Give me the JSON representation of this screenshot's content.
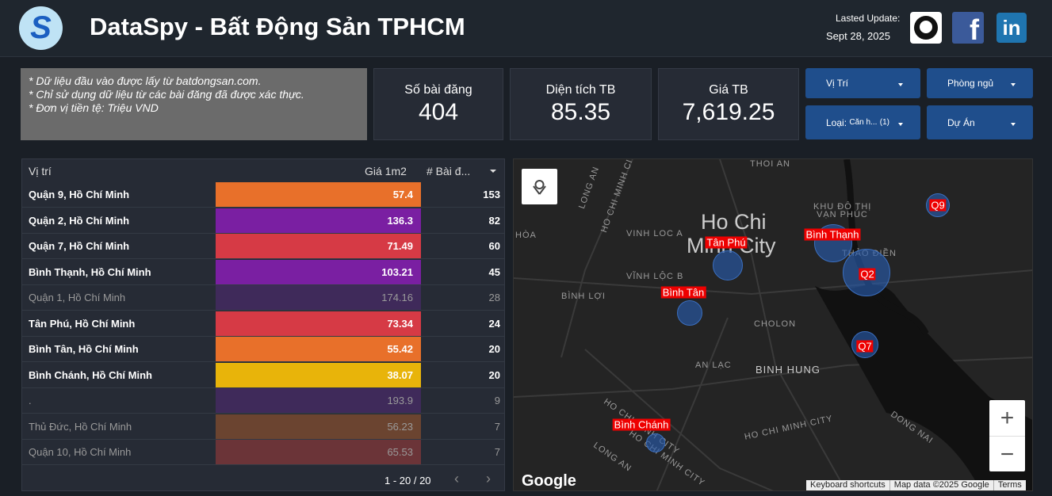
{
  "header": {
    "logo": "S",
    "title": "DataSpy - Bất Động Sản TPHCM",
    "update_label": "Lasted Update:",
    "update_date": "Sept 28, 2025",
    "social": [
      "f",
      "in"
    ]
  },
  "notes": [
    "* Dữ liệu đầu vào được lấy từ batdongsan.com.",
    "* Chỉ sử dụng dữ liệu từ các bài đăng đã được xác thực.",
    "* Đơn vị tiền tệ: Triệu VND"
  ],
  "kpis": [
    {
      "label": "Số bài đăng",
      "value": 404
    },
    {
      "label": "Diện tích TB",
      "value": 85.35
    },
    {
      "label": "Giá TB",
      "value": "7,619.25"
    }
  ],
  "filters": [
    {
      "label": "Vị Trí"
    },
    {
      "label": "Phòng ngủ"
    },
    {
      "label": "Loại:",
      "selected": "Căn h...",
      "count": "(1)"
    },
    {
      "label": "Dự Án"
    }
  ],
  "table": {
    "columns": [
      "Vị trí",
      "Giá 1m2",
      "# Bài đ..."
    ],
    "rows": [
      {
        "name": "Quận 9, Hồ Chí Minh",
        "price": 57.4,
        "count": 153,
        "color": "#e8702a",
        "highlighted": true
      },
      {
        "name": "Quận 2, Hồ Chí Minh",
        "price": 136.3,
        "count": 82,
        "color": "#7a1fa2",
        "highlighted": true
      },
      {
        "name": "Quận 7, Hồ Chí Minh",
        "price": 71.49,
        "count": 60,
        "color": "#d63a45",
        "highlighted": true
      },
      {
        "name": "Bình Thạnh, Hồ Chí Minh",
        "price": 103.21,
        "count": 45,
        "color": "#7a1fa2",
        "highlighted": true
      },
      {
        "name": "Quận 1, Hồ Chí Minh",
        "price": 174.16,
        "count": 28,
        "color": "#3f2a5a",
        "highlighted": false
      },
      {
        "name": "Tân Phú, Hồ Chí Minh",
        "price": 73.34,
        "count": 24,
        "color": "#d63a45",
        "highlighted": true
      },
      {
        "name": "Bình Tân, Hồ Chí Minh",
        "price": 55.42,
        "count": 20,
        "color": "#e8702a",
        "highlighted": true
      },
      {
        "name": "Bình Chánh, Hồ Chí Minh",
        "price": 38.07,
        "count": 20,
        "color": "#e8b40a",
        "highlighted": true
      },
      {
        "name": ".",
        "price": 193.9,
        "count": 9,
        "color": "#3f2a5a",
        "highlighted": false
      },
      {
        "name": "Thủ Đức, Hồ Chí Minh",
        "price": 56.23,
        "count": 7,
        "color": "#6b4430",
        "highlighted": false
      },
      {
        "name": "Quận 10, Hồ Chí Minh",
        "price": 65.53,
        "count": 7,
        "color": "#6b3438",
        "highlighted": false
      }
    ],
    "pagination": "1 - 20 / 20"
  },
  "map": {
    "places": [
      "THOI AN",
      "LONG AN",
      "HO CHI MINH CITY",
      "VINH LOC A",
      "HÒA",
      "VĨNH LỘC B",
      "BÌNH LỢI",
      "Ho Chi",
      "Minh City",
      "KHU ĐÔ THỊ",
      "VẠN PHÚC",
      "THẢO ĐIỀN",
      "CHOLON",
      "AN LẠC",
      "BINH HUNG",
      "HO CHI MINH CITY",
      "LONG AN",
      "HO CHI MINH CITY",
      "DONG NAI",
      "HO CHI MINH CITY"
    ],
    "markers": [
      "Q9",
      "Bình Thạnh",
      "Tân Phú",
      "Q2",
      "Bình Tân",
      "Q7",
      "Bình Chánh"
    ],
    "logo": "Google",
    "footer": [
      "Keyboard shortcuts",
      "Map data ©2025 Google",
      "Terms"
    ],
    "zoom": [
      "+",
      "−"
    ]
  }
}
